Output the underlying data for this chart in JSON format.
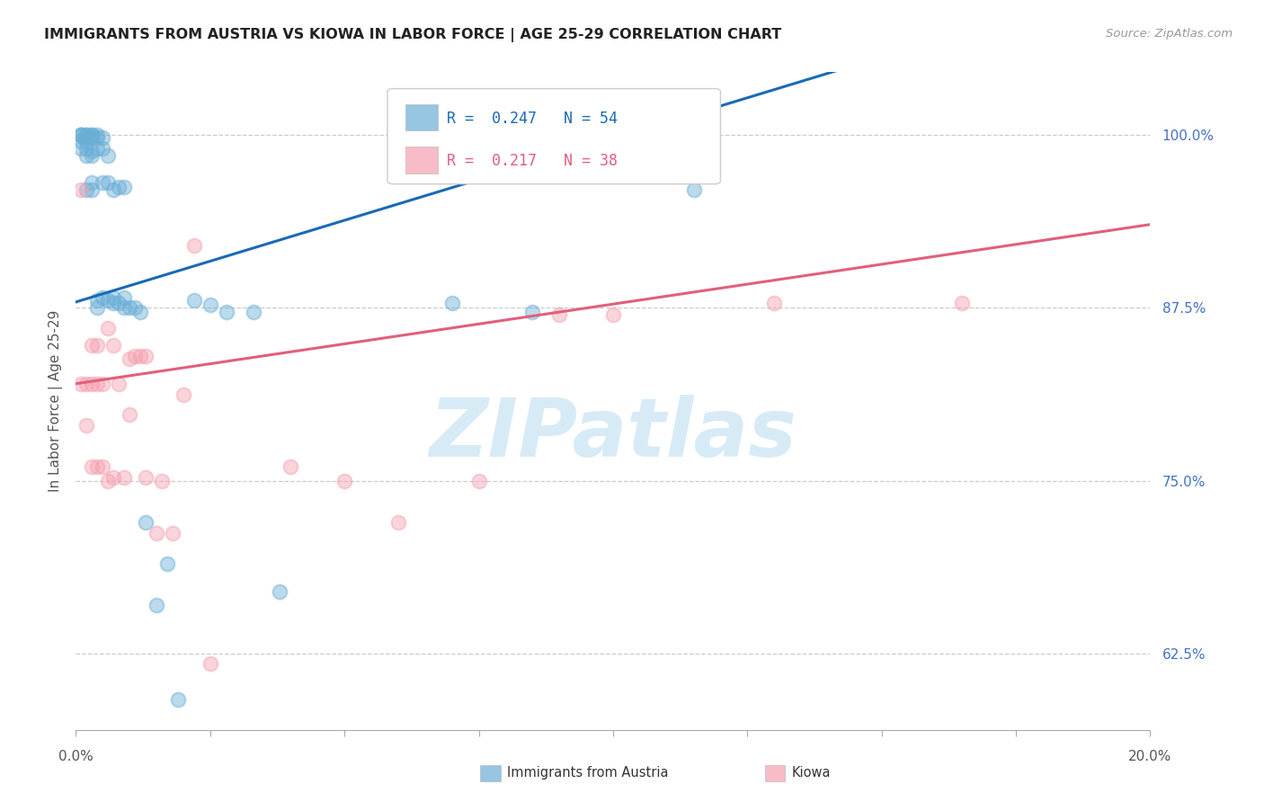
{
  "title": "IMMIGRANTS FROM AUSTRIA VS KIOWA IN LABOR FORCE | AGE 25-29 CORRELATION CHART",
  "source": "Source: ZipAtlas.com",
  "ylabel": "In Labor Force | Age 25-29",
  "ytick_labels": [
    "62.5%",
    "75.0%",
    "87.5%",
    "100.0%"
  ],
  "ytick_values": [
    0.625,
    0.75,
    0.875,
    1.0
  ],
  "xlim": [
    0.0,
    0.2
  ],
  "ylim": [
    0.57,
    1.045
  ],
  "legend_r_austria": "0.247",
  "legend_n_austria": "54",
  "legend_r_kiowa": "0.217",
  "legend_n_kiowa": "38",
  "austria_color": "#6aaed6",
  "kiowa_color": "#f4a0b0",
  "austria_line_color": "#1a6ab5",
  "kiowa_line_color": "#e0607a",
  "watermark": "ZIPatlas",
  "watermark_color": "#d0e8f5",
  "austria_x": [
    0.001,
    0.001,
    0.001,
    0.001,
    0.001,
    0.002,
    0.002,
    0.002,
    0.002,
    0.002,
    0.002,
    0.003,
    0.003,
    0.003,
    0.003,
    0.003,
    0.003,
    0.004,
    0.004,
    0.004,
    0.004,
    0.004,
    0.005,
    0.005,
    0.005,
    0.005,
    0.006,
    0.006,
    0.006,
    0.007,
    0.007,
    0.007,
    0.008,
    0.008,
    0.009,
    0.009,
    0.009,
    0.01,
    0.011,
    0.012,
    0.013,
    0.015,
    0.017,
    0.019,
    0.022,
    0.025,
    0.028,
    0.033,
    0.038,
    0.07,
    0.085,
    0.115,
    0.002,
    0.003
  ],
  "austria_y": [
    1.0,
    1.0,
    1.0,
    0.995,
    0.99,
    1.0,
    1.0,
    0.998,
    0.995,
    0.99,
    0.985,
    1.0,
    1.0,
    0.998,
    0.988,
    0.985,
    0.965,
    1.0,
    0.998,
    0.99,
    0.88,
    0.875,
    0.998,
    0.99,
    0.965,
    0.882,
    0.985,
    0.965,
    0.88,
    0.96,
    0.882,
    0.878,
    0.962,
    0.878,
    0.962,
    0.882,
    0.875,
    0.875,
    0.875,
    0.872,
    0.72,
    0.66,
    0.69,
    0.592,
    0.88,
    0.877,
    0.872,
    0.872,
    0.67,
    0.878,
    0.872,
    0.96,
    0.96,
    0.96
  ],
  "kiowa_x": [
    0.001,
    0.001,
    0.002,
    0.002,
    0.003,
    0.003,
    0.003,
    0.004,
    0.004,
    0.004,
    0.005,
    0.005,
    0.006,
    0.006,
    0.007,
    0.007,
    0.008,
    0.009,
    0.01,
    0.01,
    0.011,
    0.012,
    0.013,
    0.013,
    0.015,
    0.016,
    0.018,
    0.02,
    0.022,
    0.025,
    0.04,
    0.05,
    0.06,
    0.075,
    0.09,
    0.1,
    0.13,
    0.165
  ],
  "kiowa_y": [
    0.96,
    0.82,
    0.82,
    0.79,
    0.848,
    0.82,
    0.76,
    0.848,
    0.82,
    0.76,
    0.82,
    0.76,
    0.86,
    0.75,
    0.848,
    0.752,
    0.82,
    0.752,
    0.838,
    0.798,
    0.84,
    0.84,
    0.84,
    0.752,
    0.712,
    0.75,
    0.712,
    0.812,
    0.92,
    0.618,
    0.76,
    0.75,
    0.72,
    0.75,
    0.87,
    0.87,
    0.878,
    0.878
  ]
}
